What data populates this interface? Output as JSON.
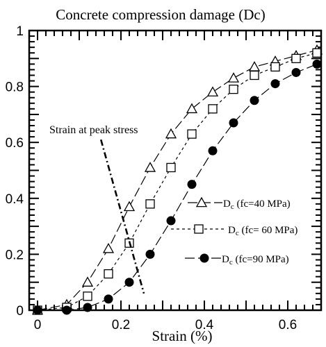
{
  "chart_data": {
    "type": "line",
    "title": "Concrete compression damage (Dc)",
    "xlabel": "Strain (%)",
    "ylabel": "",
    "xlim": [
      -0.02,
      0.68
    ],
    "ylim": [
      0,
      1
    ],
    "xticks": [
      0,
      0.2,
      0.4,
      0.6
    ],
    "xtick_labels": [
      "0",
      "0.2",
      "0.4",
      "0.6"
    ],
    "yticks": [
      0,
      0.2,
      0.4,
      0.6,
      0.8,
      1
    ],
    "ytick_labels": [
      "0",
      "0.2",
      "0.4",
      "0.6",
      "0.8",
      "1"
    ],
    "grid": false,
    "legend_placement": "lower-right",
    "series": [
      {
        "name_main": "D",
        "name_sub": "c",
        "name_rest": " (fc=40 MPa)",
        "marker": "triangle-open",
        "line_style": "long-dash",
        "color": "#000000",
        "x": [
          0,
          0.07,
          0.12,
          0.17,
          0.22,
          0.27,
          0.32,
          0.37,
          0.42,
          0.47,
          0.52,
          0.57,
          0.62,
          0.67
        ],
        "y": [
          0,
          0.02,
          0.1,
          0.22,
          0.37,
          0.51,
          0.63,
          0.72,
          0.78,
          0.83,
          0.87,
          0.89,
          0.91,
          0.93
        ]
      },
      {
        "name_main": "D",
        "name_sub": "c",
        "name_rest": " (fc= 60 MPa)",
        "marker": "square-open",
        "line_style": "short-dash",
        "color": "#000000",
        "x": [
          0,
          0.07,
          0.12,
          0.17,
          0.22,
          0.27,
          0.32,
          0.37,
          0.42,
          0.47,
          0.52,
          0.57,
          0.62,
          0.67
        ],
        "y": [
          0,
          0.01,
          0.05,
          0.13,
          0.24,
          0.38,
          0.51,
          0.63,
          0.72,
          0.79,
          0.84,
          0.87,
          0.9,
          0.92
        ]
      },
      {
        "name_main": "D",
        "name_sub": "c",
        "name_rest": " (fc=90 MPa)",
        "marker": "circle-filled",
        "line_style": "long-dash",
        "color": "#000000",
        "x": [
          0,
          0.07,
          0.12,
          0.17,
          0.22,
          0.27,
          0.32,
          0.37,
          0.42,
          0.47,
          0.52,
          0.57,
          0.62,
          0.67
        ],
        "y": [
          0,
          0,
          0.01,
          0.04,
          0.1,
          0.2,
          0.32,
          0.45,
          0.57,
          0.67,
          0.75,
          0.81,
          0.85,
          0.88
        ]
      }
    ],
    "annotations": [
      {
        "text": "Strain at peak stress",
        "line_style": "dash-dot",
        "line_from": [
          0.152,
          0.61
        ],
        "line_to": [
          0.255,
          0.06
        ]
      }
    ]
  }
}
